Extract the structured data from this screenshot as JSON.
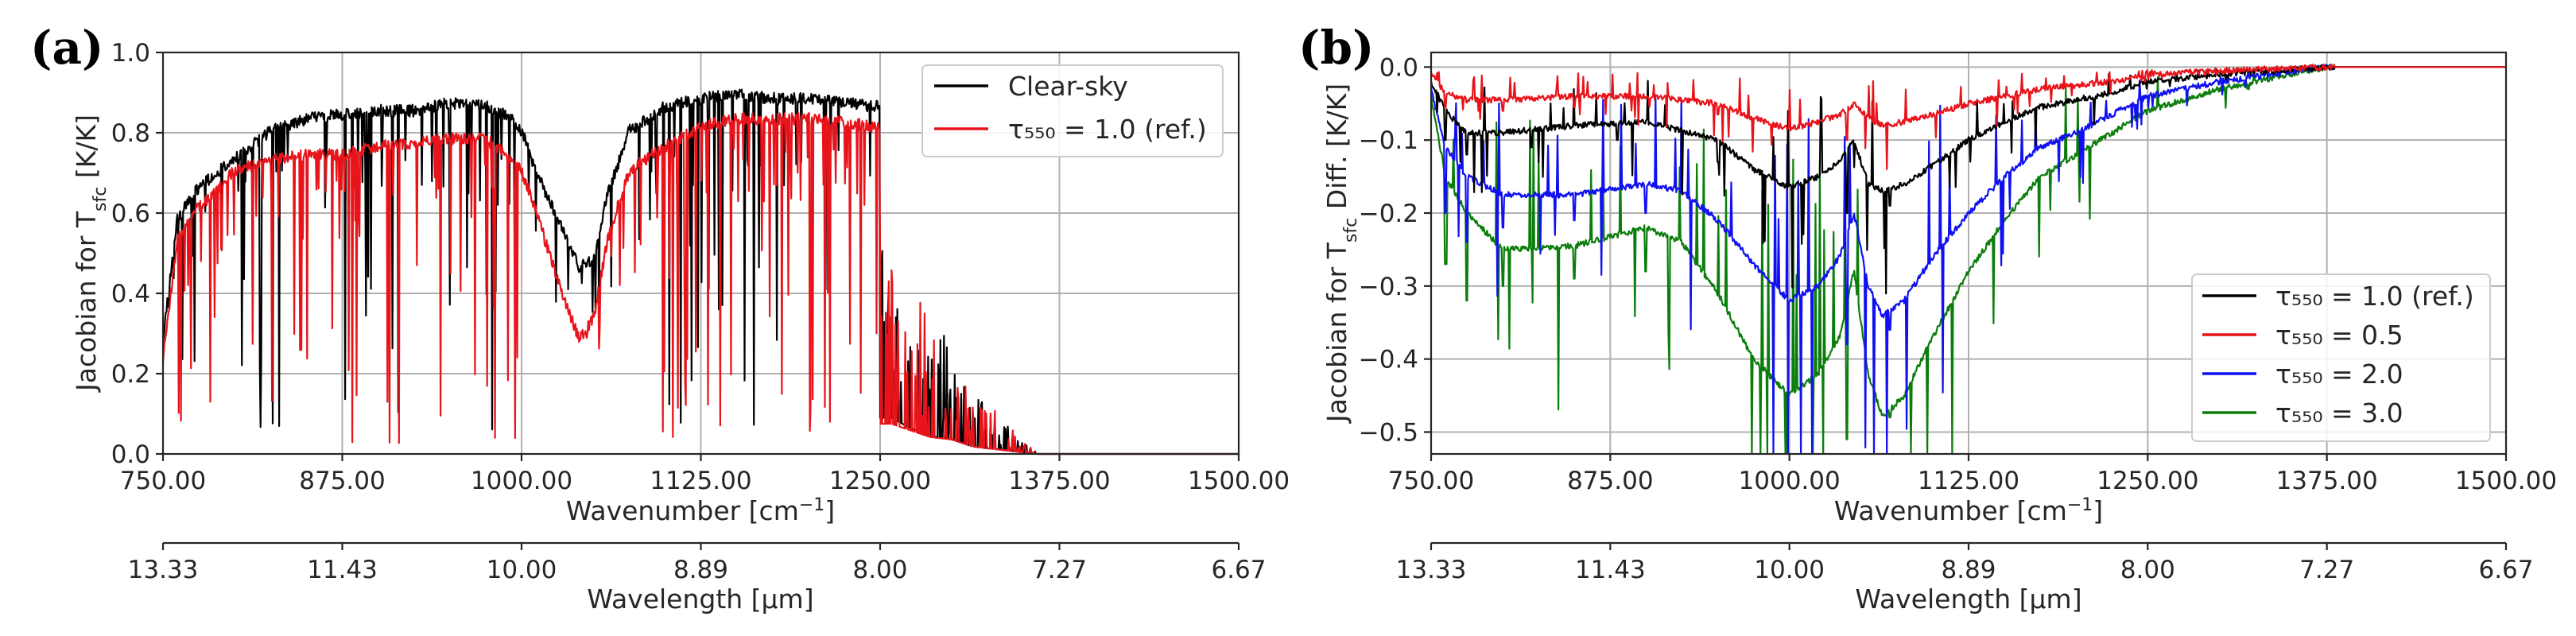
{
  "colors": {
    "black": "#000000",
    "red": "#e8141b",
    "blue": "#1010f0",
    "green": "#0b7d0b"
  },
  "panels": [
    {
      "letter": "(a)",
      "ylabel": "Jacobian for T",
      "ylabel_sub": "sfc",
      "ylabel_tail": " [K/K]",
      "xlabel": "Wavenumber [cm",
      "xlabel_sup": "−1",
      "xlabel_tail": "]",
      "x2label": "Wavelength [μm]",
      "yticks": [
        "0.0",
        "0.2",
        "0.4",
        "0.6",
        "0.8",
        "1.0"
      ],
      "xticks": [
        "750.00",
        "875.00",
        "1000.00",
        "1125.00",
        "1250.00",
        "1375.00",
        "1500.00"
      ],
      "x2ticks": [
        "13.33",
        "11.43",
        "10.00",
        "8.89",
        "8.00",
        "7.27",
        "6.67"
      ],
      "legend": [
        {
          "text": "Clear-sky",
          "color": "#000000"
        },
        {
          "text": "τ₅₅₀ = 1.0 (ref.)",
          "color": "#e8141b"
        }
      ]
    },
    {
      "letter": "(b)",
      "ylabel": "Jacobian for T",
      "ylabel_sub": "sfc",
      "ylabel_tail": " Diff. [K/K]",
      "xlabel": "Wavenumber [cm",
      "xlabel_sup": "−1",
      "xlabel_tail": "]",
      "x2label": "Wavelength [μm]",
      "yticks": [
        "−0.5",
        "−0.4",
        "−0.3",
        "−0.2",
        "−0.1",
        "0.0"
      ],
      "xticks": [
        "750.00",
        "875.00",
        "1000.00",
        "1125.00",
        "1250.00",
        "1375.00",
        "1500.00"
      ],
      "x2ticks": [
        "13.33",
        "11.43",
        "10.00",
        "8.89",
        "8.00",
        "7.27",
        "6.67"
      ],
      "legend": [
        {
          "text": "τ₅₅₀ = 1.0 (ref.)",
          "color": "#000000"
        },
        {
          "text": "τ₅₅₀ = 0.5",
          "color": "#e8141b"
        },
        {
          "text": "τ₅₅₀ = 2.0",
          "color": "#1010f0"
        },
        {
          "text": "τ₅₅₀ = 3.0",
          "color": "#0b7d0b"
        }
      ]
    }
  ],
  "chart_data": [
    {
      "type": "line",
      "title": "(a)",
      "xlabel": "Wavenumber [cm−1]",
      "ylabel": "Jacobian for Tsfc [K/K]",
      "xlim": [
        750,
        1500
      ],
      "ylim": [
        0,
        1.0
      ],
      "secondary_xaxis": {
        "label": "Wavelength [μm]",
        "ticks": [
          13.33,
          11.43,
          10.0,
          8.89,
          8.0,
          7.27,
          6.67
        ]
      },
      "series": [
        {
          "name": "Clear-sky",
          "color": "#000000",
          "envelope": [
            [
              750,
              0.3
            ],
            [
              760,
              0.6
            ],
            [
              775,
              0.68
            ],
            [
              800,
              0.75
            ],
            [
              825,
              0.82
            ],
            [
              850,
              0.85
            ],
            [
              875,
              0.86
            ],
            [
              900,
              0.87
            ],
            [
              925,
              0.87
            ],
            [
              950,
              0.89
            ],
            [
              975,
              0.88
            ],
            [
              990,
              0.86
            ],
            [
              1000,
              0.82
            ],
            [
              1010,
              0.72
            ],
            [
              1025,
              0.6
            ],
            [
              1040,
              0.48
            ],
            [
              1050,
              0.5
            ],
            [
              1060,
              0.66
            ],
            [
              1075,
              0.82
            ],
            [
              1100,
              0.88
            ],
            [
              1125,
              0.9
            ],
            [
              1150,
              0.91
            ],
            [
              1175,
              0.9
            ],
            [
              1200,
              0.9
            ],
            [
              1225,
              0.89
            ],
            [
              1245,
              0.88
            ]
          ],
          "dips": [
            [
              1258,
              0.3
            ],
            [
              1270,
              0.22
            ],
            [
              1285,
              0.15
            ],
            [
              1300,
              0.12
            ],
            [
              1315,
              0.06
            ],
            [
              1330,
              0.04
            ],
            [
              1345,
              0.02
            ],
            [
              1360,
              0.0
            ]
          ]
        },
        {
          "name": "τ550 = 1.0 (ref.)",
          "color": "#e8141b",
          "envelope": [
            [
              750,
              0.25
            ],
            [
              760,
              0.55
            ],
            [
              775,
              0.63
            ],
            [
              800,
              0.72
            ],
            [
              825,
              0.75
            ],
            [
              850,
              0.76
            ],
            [
              875,
              0.76
            ],
            [
              900,
              0.78
            ],
            [
              925,
              0.79
            ],
            [
              950,
              0.8
            ],
            [
              975,
              0.8
            ],
            [
              990,
              0.76
            ],
            [
              1000,
              0.72
            ],
            [
              1010,
              0.62
            ],
            [
              1025,
              0.45
            ],
            [
              1040,
              0.3
            ],
            [
              1050,
              0.35
            ],
            [
              1060,
              0.55
            ],
            [
              1075,
              0.72
            ],
            [
              1100,
              0.78
            ],
            [
              1125,
              0.83
            ],
            [
              1150,
              0.85
            ],
            [
              1175,
              0.85
            ],
            [
              1200,
              0.85
            ],
            [
              1225,
              0.84
            ],
            [
              1245,
              0.83
            ]
          ],
          "dips": [
            [
              1258,
              0.25
            ],
            [
              1270,
              0.2
            ],
            [
              1285,
              0.14
            ],
            [
              1300,
              0.12
            ],
            [
              1315,
              0.06
            ],
            [
              1330,
              0.04
            ],
            [
              1345,
              0.02
            ],
            [
              1360,
              0.0
            ]
          ]
        }
      ]
    },
    {
      "type": "line",
      "title": "(b)",
      "xlabel": "Wavenumber [cm−1]",
      "ylabel": "Jacobian for Tsfc Diff. [K/K]",
      "xlim": [
        750,
        1500
      ],
      "ylim": [
        -0.53,
        0.02
      ],
      "secondary_xaxis": {
        "label": "Wavelength [μm]",
        "ticks": [
          13.33,
          11.43,
          10.0,
          8.89,
          8.0,
          7.27,
          6.67
        ]
      },
      "series": [
        {
          "name": "τ550 = 1.0 (ref.)",
          "color": "#000000",
          "points": [
            [
              750,
              -0.02
            ],
            [
              760,
              -0.06
            ],
            [
              775,
              -0.09
            ],
            [
              800,
              -0.09
            ],
            [
              850,
              -0.08
            ],
            [
              900,
              -0.075
            ],
            [
              950,
              -0.1
            ],
            [
              975,
              -0.14
            ],
            [
              1000,
              -0.165
            ],
            [
              1020,
              -0.15
            ],
            [
              1035,
              -0.13
            ],
            [
              1045,
              -0.1
            ],
            [
              1055,
              -0.16
            ],
            [
              1065,
              -0.17
            ],
            [
              1080,
              -0.16
            ],
            [
              1100,
              -0.135
            ],
            [
              1125,
              -0.1
            ],
            [
              1150,
              -0.075
            ],
            [
              1175,
              -0.055
            ],
            [
              1200,
              -0.045
            ],
            [
              1225,
              -0.035
            ],
            [
              1250,
              -0.02
            ],
            [
              1300,
              -0.01
            ],
            [
              1375,
              0.0
            ],
            [
              1500,
              0.0
            ]
          ],
          "spikes": [
            [
              760,
              -0.1
            ],
            [
              775,
              -0.12
            ],
            [
              820,
              -0.11
            ],
            [
              880,
              -0.1
            ],
            [
              950,
              -0.13
            ],
            [
              1040,
              -0.2
            ],
            [
              1070,
              -0.19
            ]
          ]
        },
        {
          "name": "τ550 = 0.5",
          "color": "#e8141b",
          "points": [
            [
              750,
              -0.01
            ],
            [
              760,
              -0.035
            ],
            [
              775,
              -0.045
            ],
            [
              800,
              -0.045
            ],
            [
              850,
              -0.04
            ],
            [
              900,
              -0.04
            ],
            [
              950,
              -0.05
            ],
            [
              975,
              -0.07
            ],
            [
              1000,
              -0.085
            ],
            [
              1020,
              -0.075
            ],
            [
              1035,
              -0.065
            ],
            [
              1045,
              -0.05
            ],
            [
              1055,
              -0.07
            ],
            [
              1065,
              -0.08
            ],
            [
              1080,
              -0.075
            ],
            [
              1100,
              -0.065
            ],
            [
              1125,
              -0.05
            ],
            [
              1150,
              -0.04
            ],
            [
              1175,
              -0.03
            ],
            [
              1200,
              -0.025
            ],
            [
              1225,
              -0.02
            ],
            [
              1250,
              -0.01
            ],
            [
              1300,
              -0.005
            ],
            [
              1375,
              0.0
            ],
            [
              1500,
              0.0
            ]
          ],
          "spikes": [
            [
              760,
              -0.055
            ],
            [
              800,
              -0.06
            ],
            [
              850,
              -0.055
            ],
            [
              950,
              -0.065
            ],
            [
              1040,
              -0.1
            ]
          ]
        },
        {
          "name": "τ550 = 2.0",
          "color": "#1010f0",
          "points": [
            [
              750,
              -0.03
            ],
            [
              760,
              -0.11
            ],
            [
              775,
              -0.15
            ],
            [
              800,
              -0.175
            ],
            [
              850,
              -0.175
            ],
            [
              900,
              -0.16
            ],
            [
              925,
              -0.17
            ],
            [
              950,
              -0.21
            ],
            [
              975,
              -0.27
            ],
            [
              1000,
              -0.32
            ],
            [
              1020,
              -0.3
            ],
            [
              1035,
              -0.26
            ],
            [
              1045,
              -0.2
            ],
            [
              1055,
              -0.3
            ],
            [
              1065,
              -0.34
            ],
            [
              1080,
              -0.32
            ],
            [
              1100,
              -0.26
            ],
            [
              1125,
              -0.2
            ],
            [
              1150,
              -0.15
            ],
            [
              1175,
              -0.11
            ],
            [
              1200,
              -0.09
            ],
            [
              1225,
              -0.065
            ],
            [
              1250,
              -0.04
            ],
            [
              1300,
              -0.02
            ],
            [
              1375,
              0.0
            ],
            [
              1500,
              0.0
            ]
          ],
          "spikes": [
            [
              760,
              -0.2
            ],
            [
              775,
              -0.24
            ],
            [
              800,
              -0.22
            ],
            [
              850,
              -0.21
            ],
            [
              900,
              -0.2
            ],
            [
              1040,
              -0.38
            ],
            [
              1070,
              -0.36
            ]
          ]
        },
        {
          "name": "τ550 = 3.0",
          "color": "#0b7d0b",
          "points": [
            [
              750,
              -0.04
            ],
            [
              760,
              -0.15
            ],
            [
              775,
              -0.2
            ],
            [
              800,
              -0.25
            ],
            [
              850,
              -0.245
            ],
            [
              900,
              -0.22
            ],
            [
              925,
              -0.24
            ],
            [
              950,
              -0.31
            ],
            [
              975,
              -0.4
            ],
            [
              1000,
              -0.45
            ],
            [
              1020,
              -0.42
            ],
            [
              1035,
              -0.37
            ],
            [
              1045,
              -0.28
            ],
            [
              1055,
              -0.42
            ],
            [
              1065,
              -0.48
            ],
            [
              1080,
              -0.45
            ],
            [
              1100,
              -0.37
            ],
            [
              1125,
              -0.28
            ],
            [
              1150,
              -0.21
            ],
            [
              1175,
              -0.15
            ],
            [
              1200,
              -0.12
            ],
            [
              1225,
              -0.09
            ],
            [
              1250,
              -0.06
            ],
            [
              1300,
              -0.03
            ],
            [
              1375,
              0.0
            ],
            [
              1500,
              0.0
            ]
          ],
          "spikes": [
            [
              760,
              -0.27
            ],
            [
              775,
              -0.32
            ],
            [
              800,
              -0.3
            ],
            [
              850,
              -0.29
            ],
            [
              900,
              -0.28
            ],
            [
              1040,
              -0.51
            ],
            [
              1070,
              -0.48
            ]
          ]
        }
      ]
    }
  ]
}
